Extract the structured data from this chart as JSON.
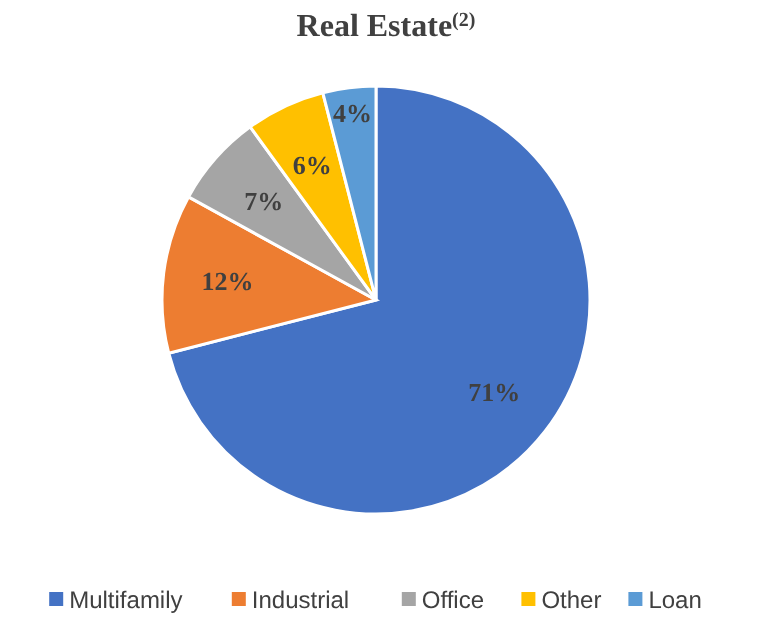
{
  "chart_data": {
    "type": "pie",
    "title": "Real Estate$^{(2)}$",
    "categories": [
      "Multifamily",
      "Industrial",
      "Office",
      "Other",
      "Loan"
    ],
    "values": [
      71,
      12,
      7,
      6,
      4
    ],
    "colors": [
      "#4472c4",
      "#ed7d31",
      "#a5a5a5",
      "#ffc000",
      "#5b9bd5"
    ],
    "value_labels": [
      "71%",
      "12%",
      "7%",
      "6%",
      "4%"
    ],
    "legend": "bottom"
  }
}
